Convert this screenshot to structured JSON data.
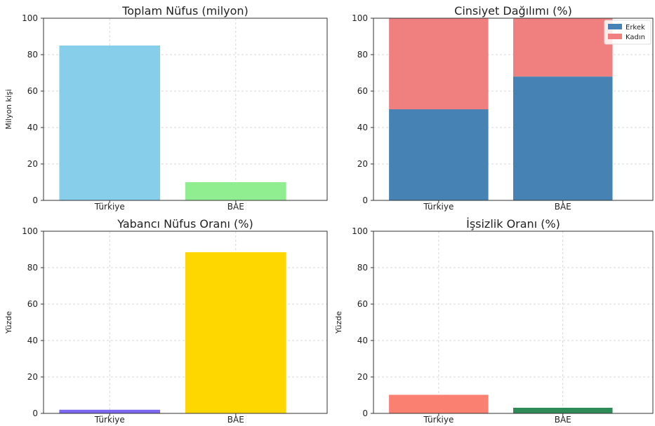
{
  "chart_data": [
    {
      "type": "bar",
      "title": "Toplam Nüfus (milyon)",
      "xlabel": "",
      "ylabel": "Milyon kişi",
      "categories": [
        "Türkiye",
        "BAE"
      ],
      "values": [
        85,
        10
      ],
      "colors": [
        "#87CEEB",
        "#90EE90"
      ],
      "ylim": [
        0,
        100
      ],
      "yticks": [
        0,
        20,
        40,
        60,
        80,
        100
      ],
      "grid": true
    },
    {
      "type": "bar",
      "stacked": true,
      "title": "Cinsiyet Dağılımı (%)",
      "xlabel": "",
      "ylabel": "",
      "categories": [
        "Türkiye",
        "BAE"
      ],
      "series": [
        {
          "name": "Erkek",
          "values": [
            50,
            68
          ],
          "color": "#4682B4"
        },
        {
          "name": "Kadın",
          "values": [
            50,
            32
          ],
          "color": "#F08080"
        }
      ],
      "ylim": [
        0,
        100
      ],
      "yticks": [
        0,
        20,
        40,
        60,
        80,
        100
      ],
      "legend": "top-right",
      "grid": true
    },
    {
      "type": "bar",
      "title": "Yabancı Nüfus Oranı (%)",
      "xlabel": "",
      "ylabel": "Yüzde",
      "categories": [
        "Türkiye",
        "BAE"
      ],
      "values": [
        2,
        88.5
      ],
      "colors": [
        "#7B68EE",
        "#FFD700"
      ],
      "ylim": [
        0,
        100
      ],
      "yticks": [
        0,
        20,
        40,
        60,
        80,
        100
      ],
      "grid": true
    },
    {
      "type": "bar",
      "title": "İşsizlik Oranı (%)",
      "xlabel": "",
      "ylabel": "Yüzde",
      "categories": [
        "Türkiye",
        "BAE"
      ],
      "values": [
        10.2,
        3.1
      ],
      "colors": [
        "#FA8072",
        "#2E8B57"
      ],
      "ylim": [
        0,
        100
      ],
      "yticks": [
        0,
        20,
        40,
        60,
        80,
        100
      ],
      "grid": true
    }
  ]
}
